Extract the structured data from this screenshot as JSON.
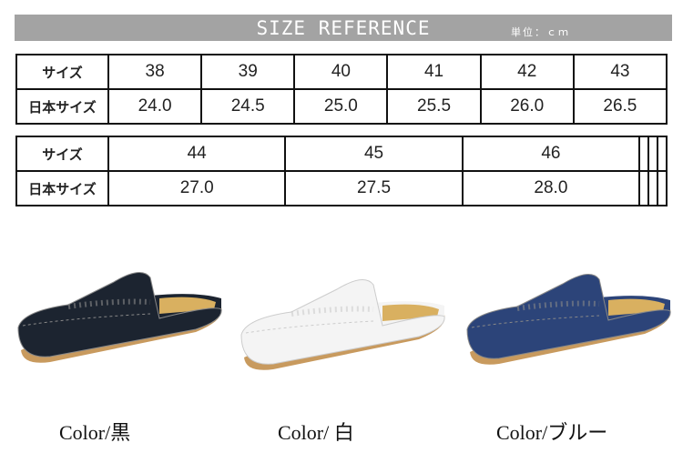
{
  "banner": {
    "title": "SIZE REFERENCE",
    "unit": "単位：ｃｍ"
  },
  "table1": {
    "header_label": "サイズ",
    "jp_label": "日本サイズ",
    "sizes": [
      "38",
      "39",
      "40",
      "41",
      "42",
      "43"
    ],
    "jp": [
      "24.0",
      "24.5",
      "25.0",
      "25.5",
      "26.0",
      "26.5"
    ]
  },
  "table2": {
    "header_label": "サイズ",
    "jp_label": "日本サイズ",
    "sizes": [
      "44",
      "45",
      "46",
      "",
      "",
      ""
    ],
    "jp": [
      "27.0",
      "27.5",
      "28.0",
      "",
      "",
      ""
    ]
  },
  "colors": [
    {
      "label": "Color/黒",
      "hex": "#1c2430"
    },
    {
      "label": "Color/ 白",
      "hex": "#f4f4f4"
    },
    {
      "label": "Color/ブルー",
      "hex": "#2c4479"
    }
  ]
}
